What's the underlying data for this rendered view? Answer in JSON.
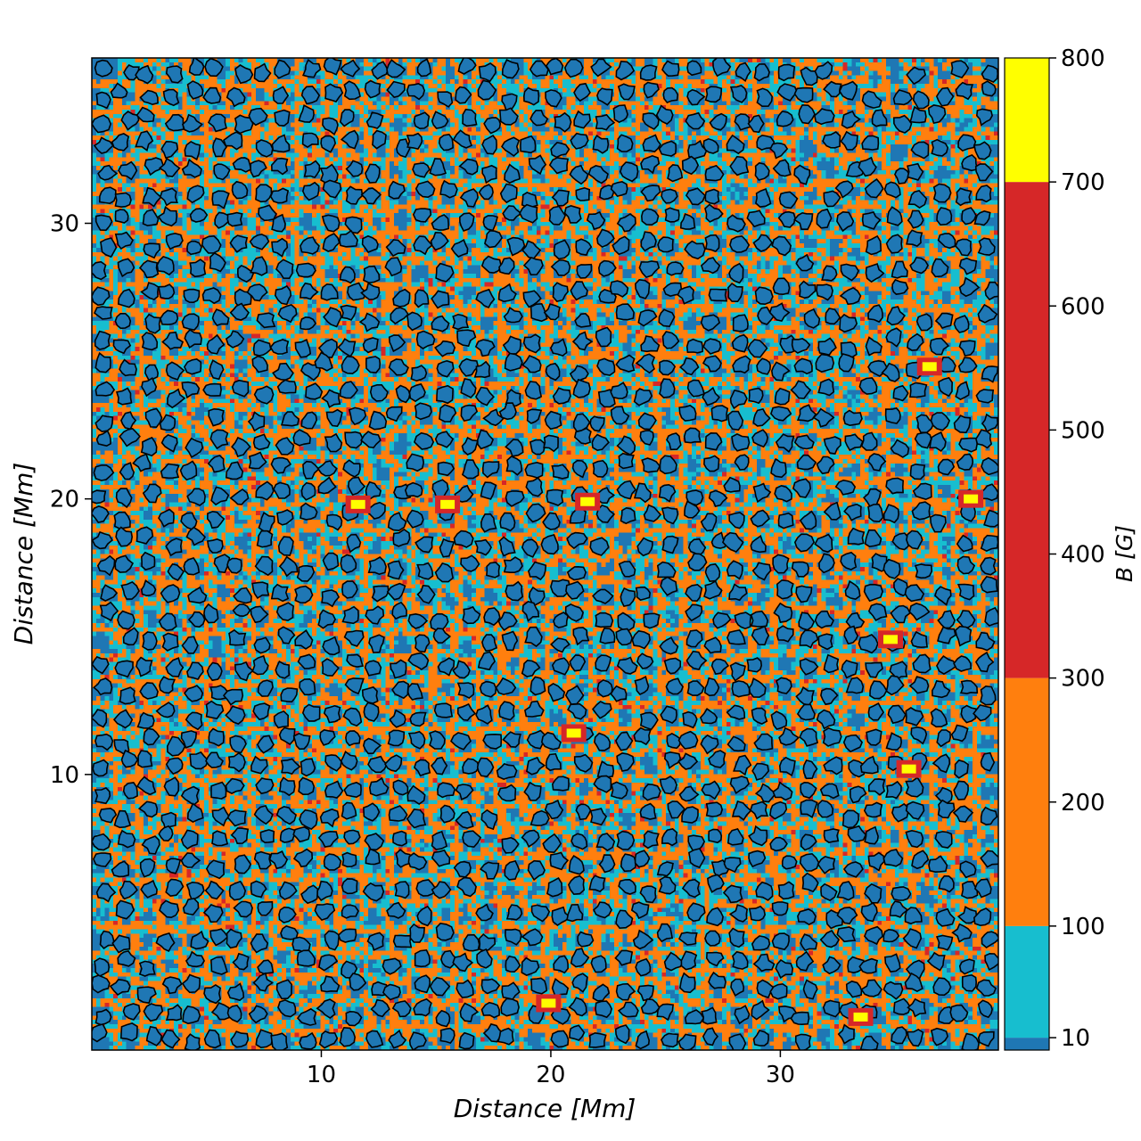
{
  "chart_data": {
    "type": "heatmap",
    "title": "",
    "xlabel": "Distance [Mm]",
    "ylabel": "Distance [Mm]",
    "xlim": [
      0,
      39.5
    ],
    "ylim": [
      0,
      36
    ],
    "x_ticks": [
      {
        "value": 10,
        "label": "10"
      },
      {
        "value": 20,
        "label": "20"
      },
      {
        "value": 30,
        "label": "30"
      }
    ],
    "y_ticks": [
      {
        "value": 10,
        "label": "10"
      },
      {
        "value": 20,
        "label": "20"
      },
      {
        "value": 30,
        "label": "30"
      }
    ],
    "grid": false,
    "contours": {
      "color": "#000000",
      "description": "granule boundaries"
    },
    "colorbar": {
      "label": "B [G]",
      "range": [
        0,
        800
      ],
      "bins": [
        {
          "from": 0,
          "to": 10,
          "color": "#1f77b4"
        },
        {
          "from": 10,
          "to": 100,
          "color": "#17becf"
        },
        {
          "from": 100,
          "to": 300,
          "color": "#ff7f0e"
        },
        {
          "from": 300,
          "to": 700,
          "color": "#d62728"
        },
        {
          "from": 700,
          "to": 800,
          "color": "#ffff00"
        }
      ],
      "ticks": [
        {
          "value": 10,
          "label": "10"
        },
        {
          "value": 100,
          "label": "100"
        },
        {
          "value": 200,
          "label": "200"
        },
        {
          "value": 300,
          "label": "300"
        },
        {
          "value": 400,
          "label": "400"
        },
        {
          "value": 500,
          "label": "500"
        },
        {
          "value": 600,
          "label": "600"
        },
        {
          "value": 700,
          "label": "700"
        },
        {
          "value": 800,
          "label": "800"
        }
      ]
    },
    "bright_spots": [
      {
        "x": 15.5,
        "y": 19.8,
        "level": "yellow"
      },
      {
        "x": 11.6,
        "y": 19.8,
        "level": "yellow"
      },
      {
        "x": 34.8,
        "y": 14.9,
        "level": "yellow"
      },
      {
        "x": 21.6,
        "y": 19.9,
        "level": "yellow"
      },
      {
        "x": 19.9,
        "y": 1.7,
        "level": "yellow"
      },
      {
        "x": 21.0,
        "y": 11.5,
        "level": "yellow"
      },
      {
        "x": 35.6,
        "y": 10.2,
        "level": "yellow"
      },
      {
        "x": 33.5,
        "y": 1.2,
        "level": "yellow"
      },
      {
        "x": 36.5,
        "y": 24.8,
        "level": "yellow"
      },
      {
        "x": 38.3,
        "y": 20.0,
        "level": "yellow"
      }
    ]
  }
}
